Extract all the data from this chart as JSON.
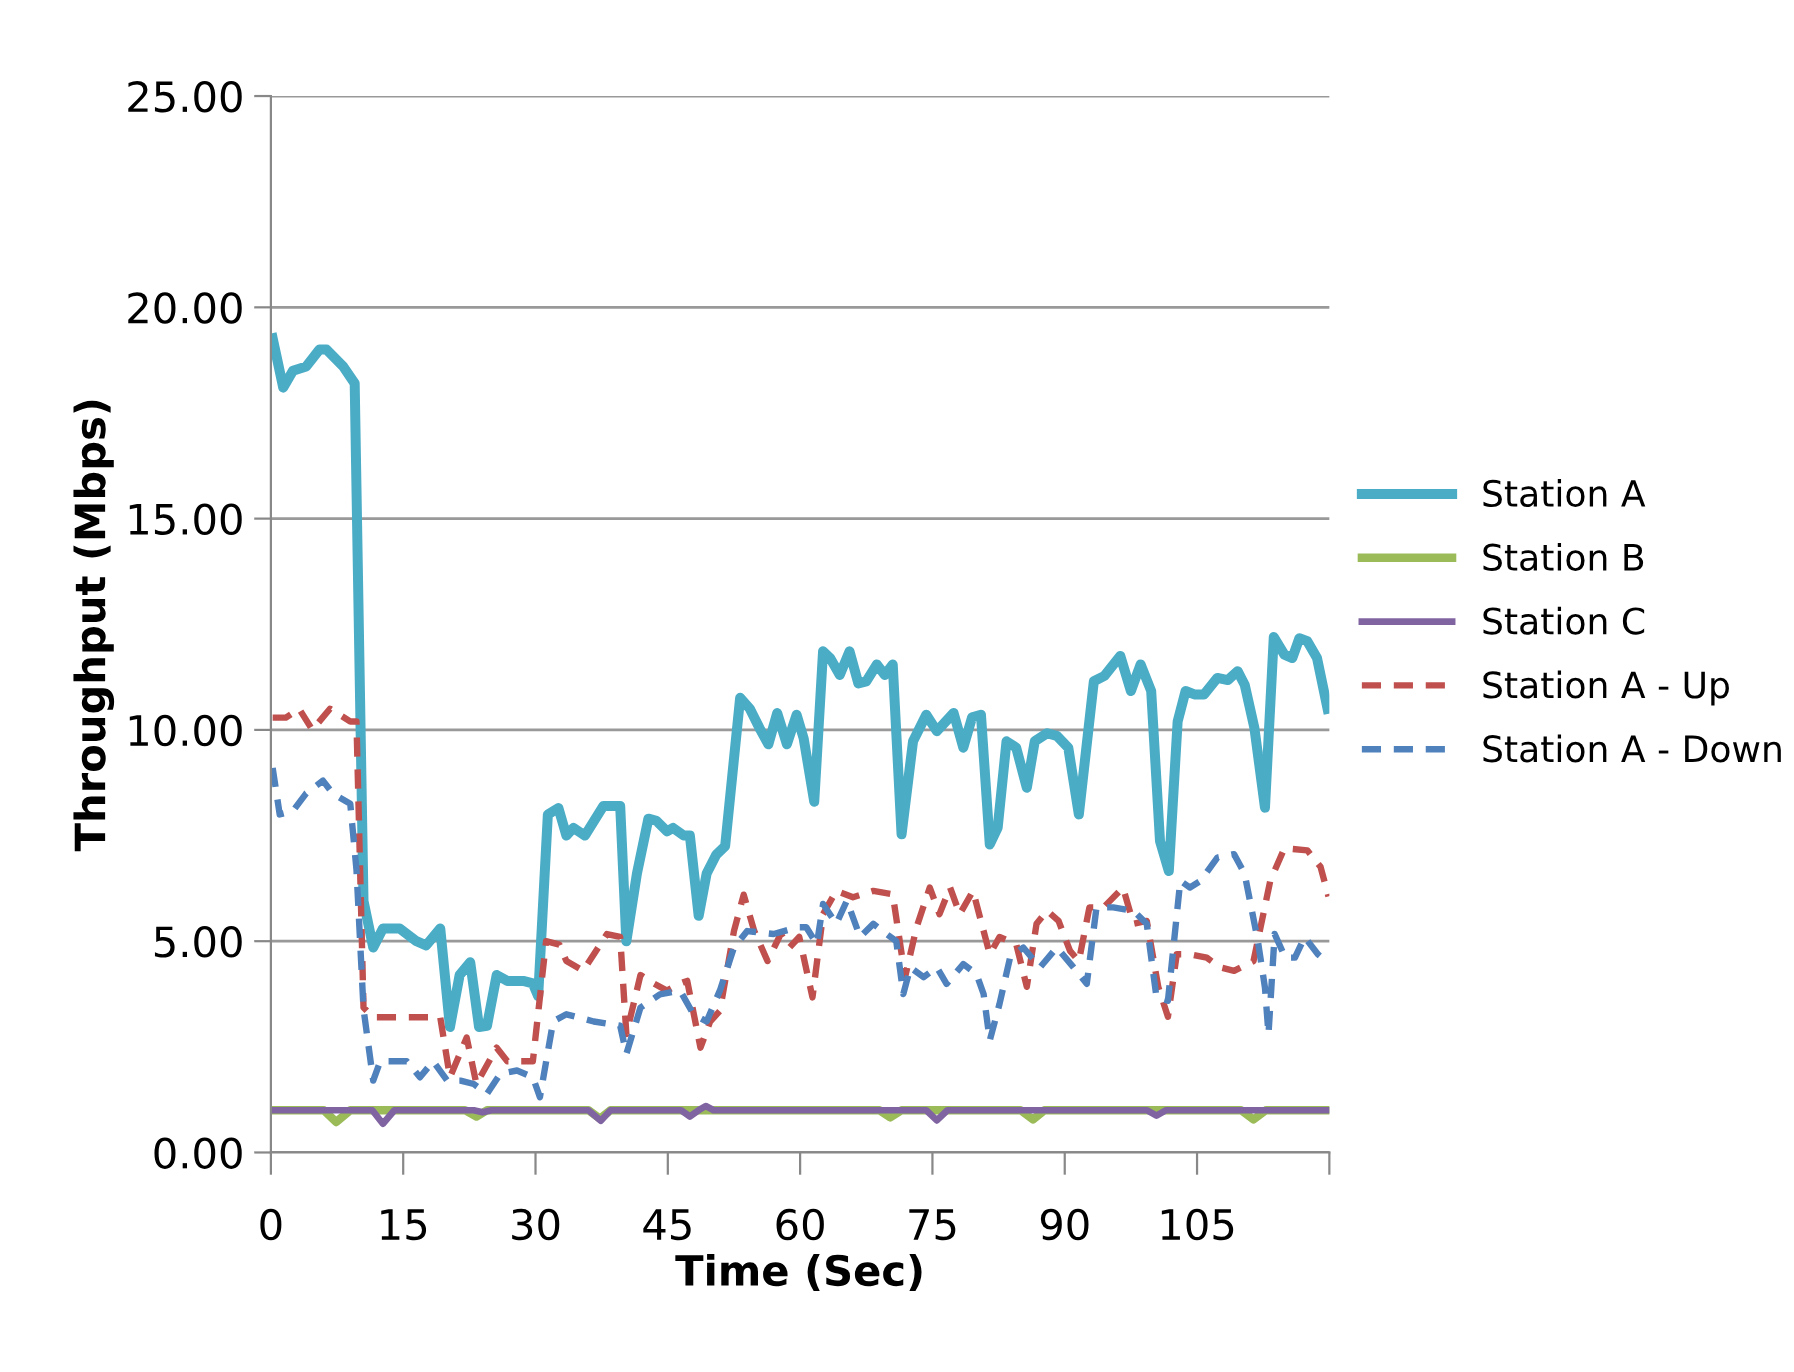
{
  "chart_data": {
    "type": "line",
    "xlabel": "Time (Sec)",
    "ylabel": "Throughput (Mbps)",
    "xlim": [
      0,
      120
    ],
    "xticks": [
      0,
      15,
      30,
      45,
      60,
      75,
      90,
      105,
      {
        "value": 120,
        "label": null
      }
    ],
    "ylim": [
      0,
      25
    ],
    "yticks": [
      {
        "value": 0,
        "label": "0.00"
      },
      {
        "value": 5,
        "label": "5.00"
      },
      {
        "value": 10,
        "label": "10.00"
      },
      {
        "value": 15,
        "label": "15.00"
      },
      {
        "value": 20,
        "label": "20.00"
      },
      {
        "value": 25,
        "label": "25.00"
      }
    ],
    "grid": "y",
    "legend": "right",
    "marker": "none",
    "series": [
      {
        "name": "Station A",
        "color": "#4bacc6",
        "line_style": "solid",
        "x": [
          0.2,
          1.4,
          2.5,
          4.0,
          5.5,
          6.3,
          8.2,
          9.5,
          10.5,
          11.6,
          12.7,
          14.6,
          16.5,
          17.6,
          19.2,
          20.3,
          21.4,
          22.6,
          23.6,
          24.5,
          25.6,
          26.8,
          28.6,
          29.7,
          30.3,
          31.4,
          32.6,
          33.5,
          34.3,
          35.6,
          37.7,
          39.6,
          40.3,
          41.5,
          42.8,
          43.7,
          44.9,
          45.6,
          46.8,
          47.5,
          48.5,
          49.4,
          50.5,
          51.5,
          53.2,
          54.3,
          55.5,
          56.4,
          57.4,
          58.5,
          59.6,
          60.4,
          61.6,
          62.6,
          63.4,
          64.5,
          65.6,
          66.6,
          67.5,
          68.7,
          69.6,
          70.5,
          71.5,
          72.8,
          74.3,
          75.5,
          77.4,
          78.5,
          79.5,
          80.5,
          81.5,
          82.4,
          83.4,
          84.5,
          85.7,
          86.6,
          88.0,
          89.1,
          90.4,
          91.6,
          93.3,
          94.5,
          96.3,
          97.5,
          98.6,
          99.8,
          100.8,
          101.8,
          102.8,
          103.7,
          104.7,
          105.8,
          107.3,
          108.5,
          109.6,
          110.4,
          111.5,
          112.7,
          113.7,
          114.9,
          115.8,
          116.6,
          117.5,
          118.6,
          119.8
        ],
        "values": [
          19.27,
          18.1,
          18.5,
          18.6,
          19.0,
          19.0,
          18.6,
          18.2,
          5.95,
          4.85,
          5.3,
          5.3,
          5.0,
          4.9,
          5.3,
          2.97,
          4.2,
          4.5,
          2.97,
          3.0,
          4.2,
          4.06,
          4.06,
          4.0,
          3.7,
          8.0,
          8.15,
          7.5,
          7.68,
          7.5,
          8.2,
          8.2,
          5.0,
          6.6,
          7.9,
          7.85,
          7.6,
          7.68,
          7.5,
          7.5,
          5.6,
          6.6,
          7.05,
          7.25,
          10.76,
          10.5,
          10.0,
          9.66,
          10.4,
          9.66,
          10.36,
          9.8,
          8.3,
          11.86,
          11.7,
          11.3,
          11.86,
          11.1,
          11.15,
          11.55,
          11.3,
          11.55,
          7.53,
          9.73,
          10.36,
          9.97,
          10.4,
          9.58,
          10.3,
          10.36,
          7.29,
          7.69,
          9.73,
          9.58,
          8.63,
          9.73,
          9.92,
          9.86,
          9.58,
          8.0,
          11.15,
          11.28,
          11.75,
          10.92,
          11.55,
          10.92,
          7.37,
          6.66,
          10.2,
          10.92,
          10.84,
          10.84,
          11.23,
          11.18,
          11.39,
          11.07,
          10.05,
          8.16,
          12.2,
          11.78,
          11.7,
          12.17,
          12.1,
          11.7,
          10.5
        ]
      },
      {
        "name": "Station B",
        "color": "#9bbb59",
        "line_style": "solid",
        "x": [
          0,
          6,
          7.4,
          9,
          22,
          23.3,
          24.5,
          36,
          37.3,
          38.5,
          69,
          70.2,
          71.5,
          85,
          86.4,
          87.7,
          110,
          111.4,
          112.8,
          120
        ],
        "values": [
          1.0,
          1.0,
          0.72,
          1.0,
          1.0,
          0.85,
          1.0,
          1.0,
          0.8,
          1.0,
          1.0,
          0.83,
          1.0,
          1.0,
          0.78,
          1.0,
          1.0,
          0.78,
          1.0,
          1.0
        ]
      },
      {
        "name": "Station C",
        "color": "#8064a2",
        "line_style": "solid",
        "x": [
          0,
          11.5,
          12.7,
          14,
          23,
          24,
          25,
          36,
          37.4,
          38.5,
          46.5,
          47.5,
          48.5,
          49.3,
          50.2,
          74.3,
          75.5,
          76.7,
          99.3,
          100.4,
          101.5,
          120
        ],
        "values": [
          1.0,
          1.0,
          0.68,
          1.0,
          1.0,
          0.95,
          1.0,
          1.0,
          0.75,
          1.0,
          1.0,
          0.85,
          1.0,
          1.1,
          1.0,
          1.0,
          0.76,
          1.0,
          1.0,
          0.87,
          1.0,
          1.0
        ]
      },
      {
        "name": "Station A - Up",
        "color": "#c0504d",
        "line_style": "dashed",
        "x": [
          0.2,
          1.7,
          3.2,
          4.7,
          6.7,
          9.0,
          9.7,
          10.5,
          11.6,
          19.2,
          20.3,
          22.2,
          23.3,
          25.6,
          26.8,
          29.7,
          31.2,
          32.7,
          33.5,
          35.4,
          38.1,
          39.6,
          40.3,
          41.9,
          43.4,
          44.9,
          46.4,
          47.2,
          48.7,
          49.8,
          50.9,
          52.5,
          53.6,
          54.8,
          56.3,
          57.8,
          58.8,
          59.9,
          61.4,
          62.6,
          64.1,
          66.0,
          68.3,
          70.5,
          71.9,
          73.2,
          74.7,
          75.8,
          77.0,
          78.1,
          79.6,
          81.5,
          82.6,
          84.5,
          85.7,
          86.8,
          88.0,
          89.3,
          90.6,
          91.6,
          92.8,
          94.4,
          96.6,
          97.8,
          99.3,
          100.6,
          101.7,
          102.7,
          104.2,
          106.1,
          107.6,
          109.2,
          111.4,
          113.3,
          114.9,
          117.5,
          119.0,
          119.9
        ],
        "values": [
          10.29,
          10.29,
          10.5,
          10.0,
          10.5,
          10.2,
          10.2,
          3.43,
          3.2,
          3.2,
          1.78,
          2.72,
          1.62,
          2.48,
          2.16,
          2.16,
          5.0,
          4.92,
          4.53,
          4.3,
          5.17,
          5.1,
          2.8,
          4.2,
          4.0,
          3.83,
          4.0,
          4.06,
          2.48,
          3.1,
          3.35,
          5.24,
          6.1,
          5.24,
          4.53,
          5.17,
          4.85,
          5.1,
          3.67,
          5.64,
          6.19,
          6.04,
          6.19,
          6.11,
          4.15,
          5.33,
          6.27,
          5.64,
          6.27,
          5.64,
          6.19,
          4.69,
          5.1,
          4.93,
          3.92,
          5.41,
          5.72,
          5.48,
          4.77,
          4.53,
          5.8,
          5.8,
          6.27,
          5.41,
          5.48,
          3.92,
          3.21,
          4.69,
          4.69,
          4.61,
          4.38,
          4.3,
          4.53,
          6.43,
          7.2,
          7.15,
          6.76,
          6.06
        ]
      },
      {
        "name": "Station A - Down",
        "color": "#4f81bd",
        "line_style": "dashed",
        "x": [
          0.2,
          1.0,
          2.5,
          4.0,
          5.9,
          7.0,
          9.0,
          9.7,
          10.5,
          11.6,
          12.4,
          15.4,
          16.9,
          18.4,
          20.0,
          21.5,
          23.0,
          24.5,
          26.0,
          27.9,
          29.7,
          30.5,
          32.0,
          33.5,
          36.6,
          39.6,
          40.3,
          41.9,
          44.1,
          46.4,
          47.9,
          49.4,
          50.9,
          52.5,
          54.0,
          57.0,
          59.7,
          60.7,
          61.9,
          62.6,
          64.1,
          65.3,
          66.8,
          68.3,
          69.8,
          70.9,
          71.7,
          72.5,
          74.0,
          75.5,
          76.6,
          78.5,
          80.0,
          80.8,
          81.5,
          82.6,
          83.8,
          85.3,
          87.2,
          89.1,
          91.0,
          92.5,
          93.6,
          95.5,
          97.8,
          99.3,
          100.4,
          101.7,
          103.1,
          104.2,
          105.4,
          107.3,
          109.2,
          110.4,
          111.9,
          112.7,
          113.1,
          113.8,
          115.0,
          116.1,
          117.2,
          118.7,
          120.0
        ],
        "values": [
          9.1,
          8.0,
          8.08,
          8.5,
          8.8,
          8.5,
          8.25,
          6.7,
          3.4,
          1.7,
          2.16,
          2.16,
          1.78,
          2.16,
          1.7,
          1.7,
          1.62,
          1.39,
          1.86,
          1.94,
          1.78,
          1.31,
          3.1,
          3.27,
          3.1,
          3.0,
          2.33,
          3.43,
          3.74,
          3.83,
          3.27,
          3.1,
          3.83,
          4.85,
          5.24,
          5.17,
          5.33,
          5.33,
          4.93,
          5.88,
          5.41,
          5.96,
          5.1,
          5.41,
          5.17,
          5.0,
          3.75,
          4.38,
          4.15,
          4.38,
          3.99,
          4.46,
          4.22,
          3.75,
          2.65,
          3.51,
          4.61,
          4.85,
          4.38,
          4.85,
          4.38,
          3.99,
          5.8,
          5.8,
          5.72,
          5.41,
          3.67,
          3.59,
          6.43,
          6.27,
          6.43,
          6.98,
          7.06,
          6.59,
          5.0,
          3.9,
          2.8,
          5.17,
          4.61,
          4.61,
          5.1,
          4.69,
          4.46
        ]
      }
    ]
  }
}
